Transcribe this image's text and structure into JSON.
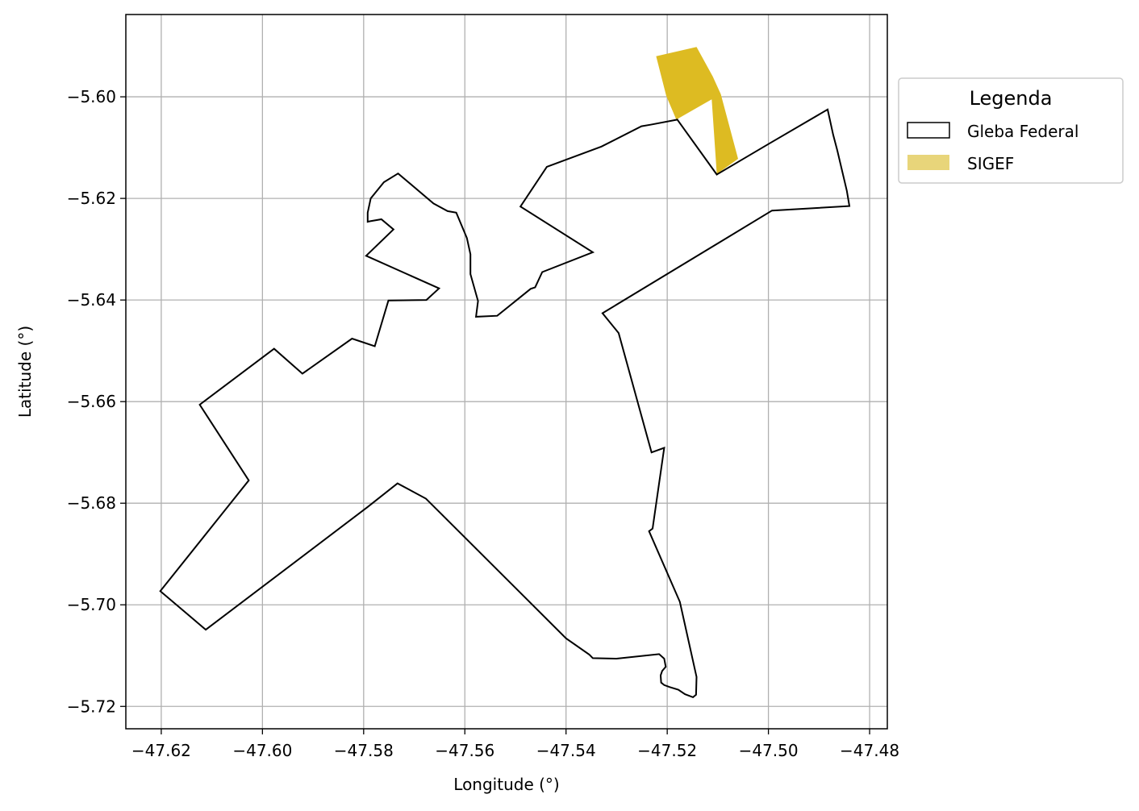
{
  "chart_data": {
    "type": "map",
    "xlabel": "Longitude (°)",
    "ylabel": "Latitude (°)",
    "xlim": [
      -47.627,
      -47.4765
    ],
    "ylim": [
      -5.7244,
      -5.5838
    ],
    "xticks": [
      -47.62,
      -47.6,
      -47.58,
      -47.56,
      -47.54,
      -47.52,
      -47.5,
      -47.48
    ],
    "xtick_labels": [
      "−47.62",
      "−47.60",
      "−47.58",
      "−47.56",
      "−47.54",
      "−47.52",
      "−47.50",
      "−47.48"
    ],
    "yticks": [
      -5.6,
      -5.62,
      -5.64,
      -5.66,
      -5.68,
      -5.7,
      -5.72
    ],
    "ytick_labels": [
      "−5.60",
      "−5.62",
      "−5.64",
      "−5.66",
      "−5.68",
      "−5.70",
      "−5.72"
    ],
    "grid": true,
    "legend": {
      "title": "Legenda",
      "placement": "outside-upper-right",
      "entries": [
        {
          "label": "Gleba Federal",
          "style": "outline",
          "color": "#000000"
        },
        {
          "label": "SIGEF",
          "style": "fill",
          "color": "#E8D57A"
        }
      ]
    },
    "series": [
      {
        "name": "SIGEF",
        "kind": "polygon",
        "fill": "#DDBB22",
        "points": [
          [
            -47.5222,
            -5.592
          ],
          [
            -47.5142,
            -5.5902
          ],
          [
            -47.511,
            -5.596
          ],
          [
            -47.5094,
            -5.5995
          ],
          [
            -47.506,
            -5.6122
          ],
          [
            -47.5102,
            -5.6152
          ],
          [
            -47.5112,
            -5.6005
          ],
          [
            -47.5182,
            -5.6045
          ],
          [
            -47.5202,
            -5.5998
          ]
        ]
      },
      {
        "name": "Gleba Federal",
        "kind": "polygon",
        "stroke": "#000000",
        "points": [
          [
            -47.518,
            -5.6045
          ],
          [
            -47.5102,
            -5.6153
          ],
          [
            -47.5,
            -5.6093
          ],
          [
            -47.4883,
            -5.6025
          ],
          [
            -47.4872,
            -5.6075
          ],
          [
            -47.4864,
            -5.6105
          ],
          [
            -47.4845,
            -5.6185
          ],
          [
            -47.484,
            -5.6215
          ],
          [
            -47.4993,
            -5.6224
          ],
          [
            -47.5328,
            -5.6426
          ],
          [
            -47.5296,
            -5.6465
          ],
          [
            -47.5231,
            -5.67
          ],
          [
            -47.5206,
            -5.6691
          ],
          [
            -47.5229,
            -5.685
          ],
          [
            -47.5236,
            -5.6855
          ],
          [
            -47.5175,
            -5.6994
          ],
          [
            -47.5142,
            -5.7142
          ],
          [
            -47.5143,
            -5.7177
          ],
          [
            -47.5149,
            -5.7182
          ],
          [
            -47.5165,
            -5.7176
          ],
          [
            -47.5178,
            -5.7167
          ],
          [
            -47.5195,
            -5.7162
          ],
          [
            -47.5206,
            -5.7158
          ],
          [
            -47.5212,
            -5.7153
          ],
          [
            -47.5213,
            -5.7139
          ],
          [
            -47.521,
            -5.713
          ],
          [
            -47.5203,
            -5.7122
          ],
          [
            -47.5206,
            -5.7106
          ],
          [
            -47.5216,
            -5.7097
          ],
          [
            -47.53,
            -5.7106
          ],
          [
            -47.5347,
            -5.7105
          ],
          [
            -47.5354,
            -5.7098
          ],
          [
            -47.54,
            -5.7066
          ],
          [
            -47.5677,
            -5.6791
          ],
          [
            -47.5733,
            -5.6761
          ],
          [
            -47.5793,
            -5.6808
          ],
          [
            -47.6112,
            -5.7049
          ],
          [
            -47.6202,
            -5.6973
          ],
          [
            -47.6027,
            -5.6755
          ],
          [
            -47.6124,
            -5.6606
          ],
          [
            -47.5977,
            -5.6496
          ],
          [
            -47.5921,
            -5.6545
          ],
          [
            -47.5823,
            -5.6476
          ],
          [
            -47.5778,
            -5.6491
          ],
          [
            -47.5751,
            -5.6401
          ],
          [
            -47.5676,
            -5.64
          ],
          [
            -47.5651,
            -5.6377
          ],
          [
            -47.5795,
            -5.6313
          ],
          [
            -47.5741,
            -5.6261
          ],
          [
            -47.5765,
            -5.6241
          ],
          [
            -47.5788,
            -5.6245
          ],
          [
            -47.5792,
            -5.6246
          ],
          [
            -47.5792,
            -5.6228
          ],
          [
            -47.5786,
            -5.62
          ],
          [
            -47.576,
            -5.6168
          ],
          [
            -47.5732,
            -5.6151
          ],
          [
            -47.5662,
            -5.621
          ],
          [
            -47.5634,
            -5.6225
          ],
          [
            -47.5617,
            -5.6228
          ],
          [
            -47.5596,
            -5.6278
          ],
          [
            -47.5589,
            -5.631
          ],
          [
            -47.5589,
            -5.6349
          ],
          [
            -47.5574,
            -5.6402
          ],
          [
            -47.5578,
            -5.6433
          ],
          [
            -47.5536,
            -5.6431
          ],
          [
            -47.547,
            -5.6378
          ],
          [
            -47.5461,
            -5.6375
          ],
          [
            -47.5447,
            -5.6345
          ],
          [
            -47.5347,
            -5.6306
          ],
          [
            -47.549,
            -5.6216
          ],
          [
            -47.5438,
            -5.6138
          ],
          [
            -47.533,
            -5.6098
          ],
          [
            -47.5251,
            -5.6058
          ],
          [
            -47.5233,
            -5.6055
          ],
          [
            -47.518,
            -5.6045
          ]
        ]
      }
    ]
  }
}
